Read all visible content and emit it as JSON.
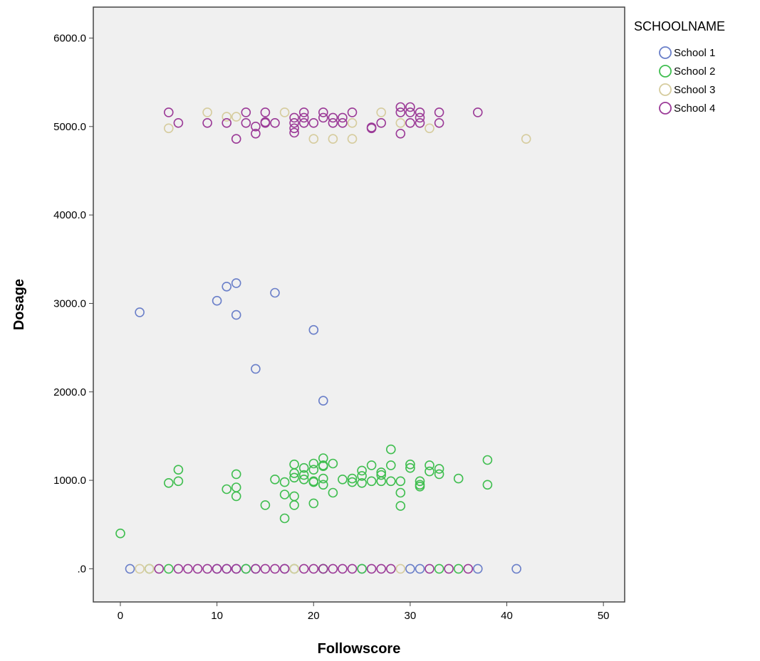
{
  "chart_data": {
    "type": "scatter",
    "xlabel": "Followscore",
    "ylabel": "Dosage",
    "xlim": [
      -2.8,
      52.2
    ],
    "ylim": [
      -375,
      6350
    ],
    "x_ticks": [
      0,
      10,
      20,
      30,
      40,
      50
    ],
    "x_tick_labels": [
      "0",
      "10",
      "20",
      "30",
      "40",
      "50"
    ],
    "y_ticks": [
      0,
      1000,
      2000,
      3000,
      4000,
      5000,
      6000
    ],
    "y_tick_labels": [
      ".0",
      "1000.0",
      "2000.0",
      "3000.0",
      "4000.0",
      "5000.0",
      "6000.0"
    ],
    "grid": false,
    "legend": {
      "title": "SCHOOLNAME",
      "placement": "right"
    },
    "series": [
      {
        "name": "School 1",
        "color": "#6a7fc9",
        "points": [
          [
            1,
            0
          ],
          [
            10,
            0
          ],
          [
            11,
            0
          ],
          [
            12,
            0
          ],
          [
            13,
            0
          ],
          [
            14,
            0
          ],
          [
            17,
            0
          ],
          [
            21,
            0
          ],
          [
            25,
            0
          ],
          [
            30,
            0
          ],
          [
            31,
            0
          ],
          [
            37,
            0
          ],
          [
            41,
            0
          ],
          [
            2,
            2900
          ],
          [
            10,
            3030
          ],
          [
            11,
            3190
          ],
          [
            12,
            3230
          ],
          [
            12,
            2870
          ],
          [
            16,
            3120
          ],
          [
            20,
            2700
          ],
          [
            14,
            2260
          ],
          [
            21,
            1900
          ]
        ]
      },
      {
        "name": "School 2",
        "color": "#3fbe4f",
        "points": [
          [
            3,
            0
          ],
          [
            5,
            0
          ],
          [
            13,
            0
          ],
          [
            18,
            0
          ],
          [
            21,
            0
          ],
          [
            25,
            0
          ],
          [
            33,
            0
          ],
          [
            35,
            0
          ],
          [
            0,
            400
          ],
          [
            5,
            970
          ],
          [
            6,
            990
          ],
          [
            6,
            1120
          ],
          [
            11,
            900
          ],
          [
            12,
            920
          ],
          [
            12,
            820
          ],
          [
            12,
            1070
          ],
          [
            15,
            720
          ],
          [
            16,
            1010
          ],
          [
            17,
            980
          ],
          [
            17,
            840
          ],
          [
            17,
            570
          ],
          [
            18,
            1180
          ],
          [
            18,
            1080
          ],
          [
            18,
            1030
          ],
          [
            18,
            820
          ],
          [
            18,
            720
          ],
          [
            19,
            1140
          ],
          [
            19,
            1060
          ],
          [
            19,
            1010
          ],
          [
            20,
            1120
          ],
          [
            20,
            1190
          ],
          [
            20,
            990
          ],
          [
            20,
            980
          ],
          [
            20,
            740
          ],
          [
            21,
            1250
          ],
          [
            21,
            1170
          ],
          [
            21,
            1160
          ],
          [
            21,
            1020
          ],
          [
            21,
            950
          ],
          [
            22,
            1190
          ],
          [
            22,
            860
          ],
          [
            23,
            1010
          ],
          [
            24,
            1020
          ],
          [
            24,
            980
          ],
          [
            25,
            1110
          ],
          [
            25,
            1050
          ],
          [
            25,
            970
          ],
          [
            26,
            1170
          ],
          [
            26,
            990
          ],
          [
            27,
            1090
          ],
          [
            27,
            1060
          ],
          [
            27,
            990
          ],
          [
            28,
            1350
          ],
          [
            28,
            1170
          ],
          [
            28,
            990
          ],
          [
            29,
            990
          ],
          [
            29,
            860
          ],
          [
            29,
            710
          ],
          [
            30,
            1180
          ],
          [
            30,
            1140
          ],
          [
            31,
            990
          ],
          [
            31,
            950
          ],
          [
            31,
            930
          ],
          [
            32,
            1170
          ],
          [
            32,
            1100
          ],
          [
            33,
            1130
          ],
          [
            33,
            1070
          ],
          [
            35,
            1020
          ],
          [
            38,
            1230
          ],
          [
            38,
            950
          ]
        ]
      },
      {
        "name": "School 3",
        "color": "#d6cc9e",
        "points": [
          [
            2,
            0
          ],
          [
            3,
            0
          ],
          [
            18,
            0
          ],
          [
            29,
            0
          ],
          [
            5,
            4980
          ],
          [
            9,
            5160
          ],
          [
            11,
            5110
          ],
          [
            12,
            5110
          ],
          [
            17,
            5160
          ],
          [
            20,
            4860
          ],
          [
            22,
            4860
          ],
          [
            24,
            4860
          ],
          [
            24,
            5040
          ],
          [
            27,
            5160
          ],
          [
            29,
            5040
          ],
          [
            32,
            4980
          ],
          [
            42,
            4860
          ]
        ]
      },
      {
        "name": "School 4",
        "color": "#9b3a97",
        "points": [
          [
            4,
            0
          ],
          [
            6,
            0
          ],
          [
            7,
            0
          ],
          [
            8,
            0
          ],
          [
            9,
            0
          ],
          [
            10,
            0
          ],
          [
            11,
            0
          ],
          [
            12,
            0
          ],
          [
            14,
            0
          ],
          [
            15,
            0
          ],
          [
            16,
            0
          ],
          [
            17,
            0
          ],
          [
            19,
            0
          ],
          [
            20,
            0
          ],
          [
            21,
            0
          ],
          [
            22,
            0
          ],
          [
            23,
            0
          ],
          [
            24,
            0
          ],
          [
            26,
            0
          ],
          [
            27,
            0
          ],
          [
            28,
            0
          ],
          [
            32,
            0
          ],
          [
            34,
            0
          ],
          [
            36,
            0
          ],
          [
            5,
            5160
          ],
          [
            6,
            5040
          ],
          [
            9,
            5040
          ],
          [
            11,
            5040
          ],
          [
            12,
            4860
          ],
          [
            13,
            5160
          ],
          [
            13,
            5040
          ],
          [
            14,
            5000
          ],
          [
            14,
            4920
          ],
          [
            15,
            5160
          ],
          [
            15,
            5050
          ],
          [
            15,
            5040
          ],
          [
            16,
            5040
          ],
          [
            18,
            5100
          ],
          [
            18,
            5040
          ],
          [
            18,
            4980
          ],
          [
            18,
            4930
          ],
          [
            19,
            5160
          ],
          [
            19,
            5100
          ],
          [
            19,
            5040
          ],
          [
            20,
            5040
          ],
          [
            21,
            5160
          ],
          [
            21,
            5100
          ],
          [
            22,
            5100
          ],
          [
            22,
            5040
          ],
          [
            23,
            5100
          ],
          [
            23,
            5040
          ],
          [
            24,
            5160
          ],
          [
            26,
            4980
          ],
          [
            26,
            4990
          ],
          [
            27,
            5040
          ],
          [
            29,
            5220
          ],
          [
            29,
            5160
          ],
          [
            29,
            4920
          ],
          [
            30,
            5220
          ],
          [
            30,
            5160
          ],
          [
            30,
            5040
          ],
          [
            31,
            5160
          ],
          [
            31,
            5100
          ],
          [
            31,
            5040
          ],
          [
            33,
            5160
          ],
          [
            33,
            5040
          ],
          [
            37,
            5160
          ]
        ]
      }
    ]
  }
}
